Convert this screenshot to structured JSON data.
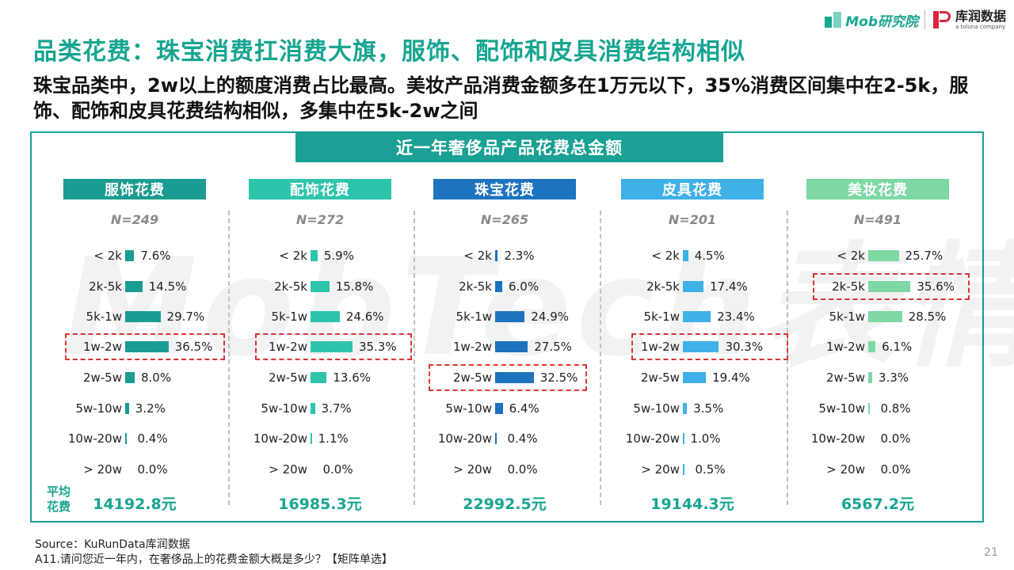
{
  "header": {
    "logo_mob": "Mob研究院",
    "logo_kurun": "库润数据",
    "logo_kurun_sub": "a toluna company",
    "title": "品类花费：珠宝消费扛消费大旗，服饰、配饰和皮具消费结构相似",
    "subtitle": "珠宝品类中，2w以上的额度消费占比最高。美妆产品消费金额多在1万元以下，35%消费区间集中在2-5k，服饰、配饰和皮具花费结构相似，多集中在5k-2w之间"
  },
  "watermark": "MobTech表情",
  "avg_label": "平均\n花费",
  "footer": {
    "source": "Source：KuRunData库润数据",
    "question": "A11.请问您近一年内，在奢侈品上的花费金额大概是多少？【矩阵单选】",
    "page": "21"
  },
  "chart_data": {
    "type": "bar",
    "orientation": "horizontal",
    "title": "近一年奢侈品产品花费总金额",
    "categories": [
      "< 2k",
      "2k-5k",
      "5k-1w",
      "1w-2w",
      "2w-5w",
      "5w-10w",
      "10w-20w",
      "> 20w"
    ],
    "unit": "%",
    "series": [
      {
        "name": "服饰花费",
        "n": "N=249",
        "color": "#1a9c92",
        "values": [
          7.6,
          14.5,
          29.7,
          36.5,
          8.0,
          3.2,
          0.4,
          0.0
        ],
        "labels": [
          "7.6%",
          "14.5%",
          "29.7%",
          "36.5%",
          "8.0%",
          "3.2%",
          "0.4%",
          "0.0%"
        ],
        "highlight": [
          3
        ],
        "avg": "14192.8元"
      },
      {
        "name": "配饰花费",
        "n": "N=272",
        "color": "#2ec4ac",
        "values": [
          5.9,
          15.8,
          24.6,
          35.3,
          13.6,
          3.7,
          1.1,
          0.0
        ],
        "labels": [
          "5.9%",
          "15.8%",
          "24.6%",
          "35.3%",
          "13.6%",
          "3.7%",
          "1.1%",
          "0.0%"
        ],
        "highlight": [
          3
        ],
        "avg": "16985.3元"
      },
      {
        "name": "珠宝花费",
        "n": "N=265",
        "color": "#1e73be",
        "values": [
          2.3,
          6.0,
          24.9,
          27.5,
          32.5,
          6.4,
          0.4,
          0.0
        ],
        "labels": [
          "2.3%",
          "6.0%",
          "24.9%",
          "27.5%",
          "32.5%",
          "6.4%",
          "0.4%",
          "0.0%"
        ],
        "highlight": [
          4
        ],
        "avg": "22992.5元"
      },
      {
        "name": "皮具花费",
        "n": "N=201",
        "color": "#3fb0e8",
        "values": [
          4.5,
          17.4,
          23.4,
          30.3,
          19.4,
          3.5,
          1.0,
          0.5
        ],
        "labels": [
          "4.5%",
          "17.4%",
          "23.4%",
          "30.3%",
          "19.4%",
          "3.5%",
          "1.0%",
          "0.5%"
        ],
        "highlight": [
          3
        ],
        "avg": "19144.3元"
      },
      {
        "name": "美妆花费",
        "n": "N=491",
        "color": "#7dd8a3",
        "values": [
          25.7,
          35.6,
          28.5,
          6.1,
          3.3,
          0.8,
          0.0,
          0.0
        ],
        "labels": [
          "25.7%",
          "35.6%",
          "28.5%",
          "6.1%",
          "3.3%",
          "0.8%",
          "0.0%",
          "0.0%"
        ],
        "highlight": [
          1
        ],
        "avg": "6567.2元"
      }
    ]
  }
}
